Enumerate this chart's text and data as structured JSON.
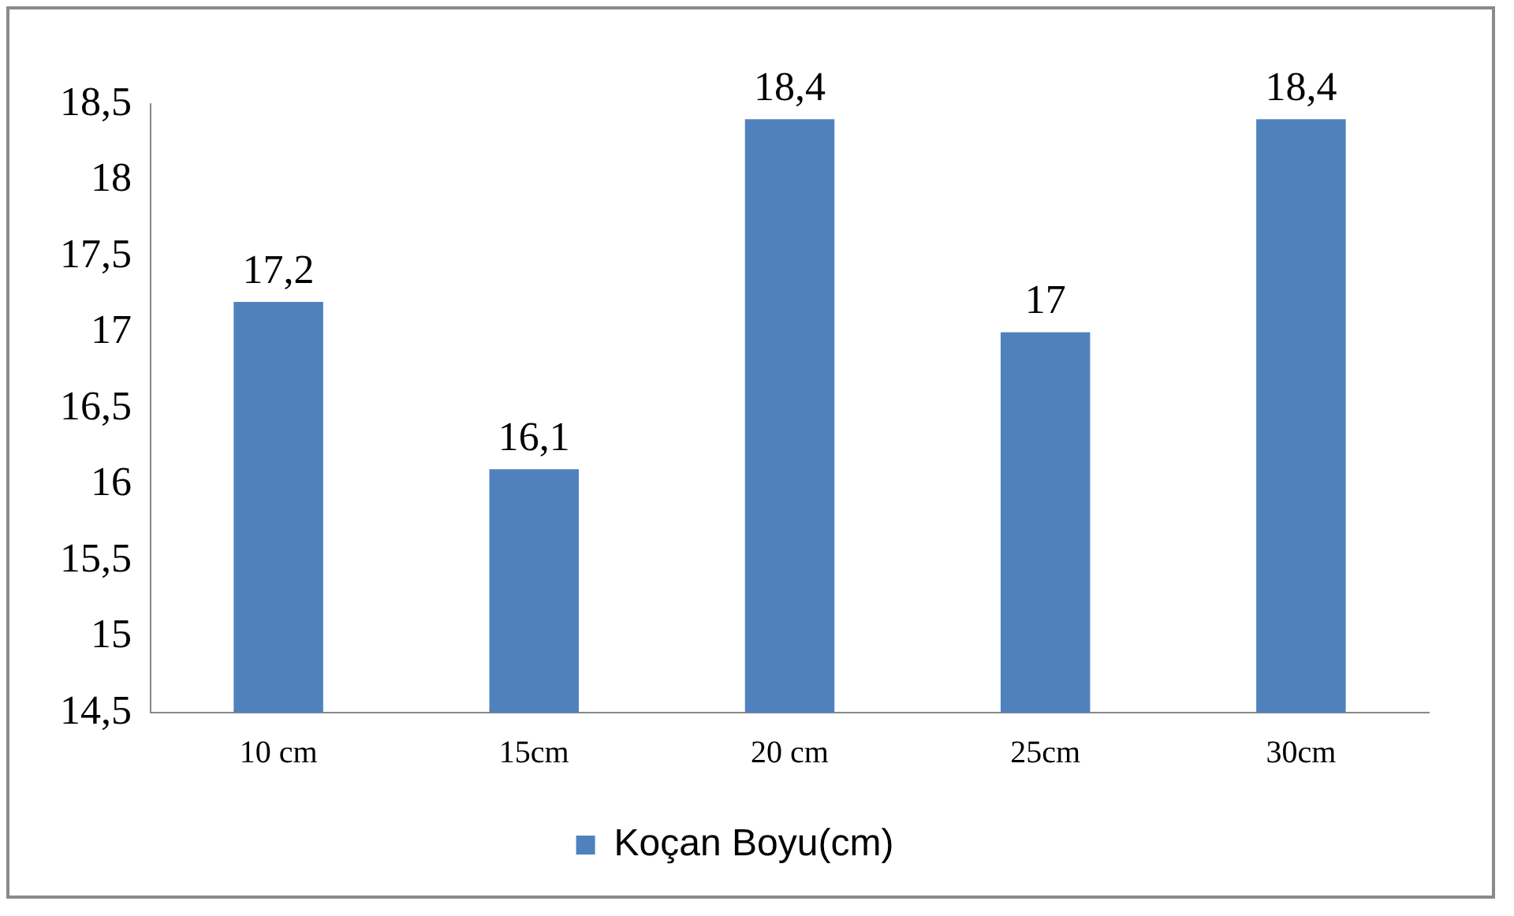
{
  "chart_data": {
    "type": "bar",
    "categories": [
      "10 cm",
      "15cm",
      "20 cm",
      "25cm",
      "30cm"
    ],
    "series": [
      {
        "name": "Koçan Boyu(cm)",
        "color": "#4f81bd",
        "values": [
          17.2,
          16.1,
          18.4,
          17,
          18.4
        ]
      }
    ],
    "value_labels": [
      "17,2",
      "16,1",
      "18,4",
      "17",
      "18,4"
    ],
    "ylim": [
      14.5,
      18.5
    ],
    "yticks": [
      {
        "value": 14.5,
        "label": "14,5"
      },
      {
        "value": 15,
        "label": "15"
      },
      {
        "value": 15.5,
        "label": "15,5"
      },
      {
        "value": 16,
        "label": "16"
      },
      {
        "value": 16.5,
        "label": "16,5"
      },
      {
        "value": 17,
        "label": "17"
      },
      {
        "value": 17.5,
        "label": "17,5"
      },
      {
        "value": 18,
        "label": "18"
      },
      {
        "value": 18.5,
        "label": "18,5"
      }
    ],
    "grid": false,
    "legend": "bottom"
  }
}
